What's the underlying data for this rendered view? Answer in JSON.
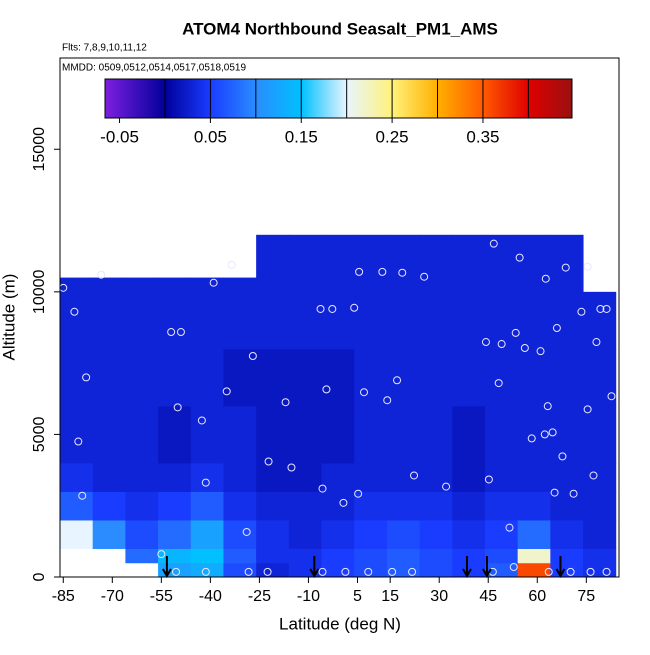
{
  "chart_data": {
    "type": "heatmap",
    "title": "ATOM4 Northbound Seasalt_PM1_AMS",
    "subtitle": "Flts: 7,8,9,10,11,12",
    "annotation": "MMDD: 0509,0512,0514,0517,0518,0519",
    "x_label": "Latitude (deg N)",
    "y_label": "Altitude (m)",
    "xlim": [
      -86,
      85
    ],
    "ylim": [
      0,
      18200
    ],
    "xticks": [
      -85,
      -70,
      -55,
      -40,
      -25,
      -10,
      5,
      15,
      30,
      45,
      60,
      75
    ],
    "yticks": [
      0,
      5000,
      10000,
      15000
    ],
    "zlim": [
      -0.066,
      0.448
    ],
    "zticks": [
      -0.05,
      0.05,
      0.15,
      0.25,
      0.35
    ],
    "colorscale": [
      [
        -0.066,
        "#7d1fe0"
      ],
      [
        0,
        "#00009a"
      ],
      [
        0.05,
        "#1a3cff"
      ],
      [
        0.1,
        "#2a8cff"
      ],
      [
        0.15,
        "#00c0ff"
      ],
      [
        0.2,
        "#e8f4ff"
      ],
      [
        0.25,
        "#fff27a"
      ],
      [
        0.3,
        "#ffb000"
      ],
      [
        0.35,
        "#ff5a00"
      ],
      [
        0.4,
        "#e00000"
      ],
      [
        0.448,
        "#9a1010"
      ]
    ],
    "x_edges": [
      -86,
      -76,
      -66,
      -56,
      -46,
      -36,
      -26,
      -16,
      -6,
      4,
      14,
      24,
      34,
      44,
      54,
      64,
      74,
      84
    ],
    "y_edges": [
      0,
      500,
      1000,
      2000,
      3000,
      4000,
      6000,
      8000,
      10000,
      10500,
      12000
    ],
    "z": [
      [
        null,
        null,
        null,
        0.12,
        0.13,
        0.06,
        0.03,
        0.04,
        0.05,
        0.06,
        0.07,
        0.06,
        0.05,
        0.07,
        0.36,
        0.05,
        0.04
      ],
      [
        null,
        null,
        0.08,
        0.14,
        0.15,
        0.07,
        0.04,
        0.04,
        0.05,
        0.06,
        0.07,
        0.06,
        0.05,
        0.06,
        0.22,
        0.05,
        0.04
      ],
      [
        0.2,
        0.1,
        0.06,
        0.08,
        0.12,
        0.06,
        0.04,
        0.03,
        0.04,
        0.05,
        0.06,
        0.05,
        0.04,
        0.05,
        0.08,
        0.04,
        0.03
      ],
      [
        0.07,
        0.05,
        0.04,
        0.05,
        0.07,
        0.04,
        0.03,
        0.03,
        0.03,
        0.04,
        0.04,
        0.04,
        0.03,
        0.04,
        0.04,
        0.03,
        0.03
      ],
      [
        0.04,
        0.03,
        0.03,
        0.03,
        0.04,
        0.03,
        0.02,
        0.02,
        0.03,
        0.03,
        0.03,
        0.03,
        0.02,
        0.03,
        0.03,
        0.03,
        0.03
      ],
      [
        0.03,
        0.03,
        0.03,
        0.02,
        0.03,
        0.03,
        0.02,
        0.02,
        0.02,
        0.03,
        0.03,
        0.03,
        0.02,
        0.03,
        0.03,
        0.03,
        0.03
      ],
      [
        0.03,
        0.03,
        0.03,
        0.03,
        0.03,
        0.02,
        0.02,
        0.02,
        0.02,
        0.03,
        0.03,
        0.03,
        0.03,
        0.03,
        0.03,
        0.03,
        0.03
      ],
      [
        0.03,
        0.03,
        0.03,
        0.03,
        0.03,
        0.03,
        0.03,
        0.03,
        0.03,
        0.03,
        0.03,
        0.03,
        0.03,
        0.03,
        0.03,
        0.03,
        0.03
      ],
      [
        0.03,
        0.03,
        0.03,
        0.03,
        0.03,
        0.03,
        0.03,
        0.03,
        0.03,
        0.03,
        0.03,
        0.03,
        0.03,
        0.03,
        0.03,
        0.03,
        null
      ],
      [
        null,
        null,
        null,
        null,
        null,
        null,
        0.03,
        0.03,
        0.03,
        0.03,
        0.03,
        0.03,
        0.03,
        0.03,
        0.03,
        0.03,
        null
      ]
    ],
    "points": {
      "x": [
        -85,
        -73.4,
        -81.6,
        -78,
        -80.4,
        -79.2,
        -52,
        -49,
        -50,
        -42.6,
        -41.4,
        -39,
        -35,
        -33.5,
        -27,
        -17,
        -22.2,
        -15.2,
        -28.9,
        -6.3,
        -2.7,
        -4.5,
        -5.7,
        0.7,
        5.2,
        4,
        5.5,
        7,
        12.6,
        14.1,
        17.1,
        18.7,
        25.4,
        22.3,
        32.1,
        45.2,
        46.7,
        44.3,
        49.1,
        48.2,
        53.4,
        54.6,
        56.2,
        62.6,
        66,
        61,
        68.7,
        63.2,
        58.3,
        62.3,
        64.7,
        67.7,
        65.3,
        71.1,
        73.5,
        75.4,
        79.3,
        78.1,
        75.4,
        77.2,
        81.2,
        82.7,
        51.5,
        -50.5,
        -41.4,
        -28.3,
        -22.5,
        -5.7,
        1.3,
        8.3,
        15.6,
        21.7,
        46.4,
        52.8,
        63.5,
        70.2,
        76.3,
        81.2,
        -55
      ],
      "y": [
        10140,
        10600,
        9300,
        7000,
        4750,
        2850,
        8590,
        8590,
        5950,
        5490,
        3310,
        10320,
        6510,
        10950,
        7750,
        6130,
        4050,
        3840,
        1580,
        9400,
        9400,
        6580,
        3100,
        2600,
        2920,
        9440,
        10700,
        6480,
        10700,
        6200,
        6900,
        10670,
        10530,
        3560,
        3170,
        3420,
        11690,
        8240,
        8170,
        6800,
        8560,
        11200,
        8030,
        10460,
        8730,
        7920,
        10850,
        5990,
        4860,
        5000,
        5070,
        4230,
        2960,
        2920,
        9300,
        10880,
        9400,
        8240,
        5880,
        3560,
        9400,
        6340,
        1730,
        180,
        180,
        180,
        180,
        180,
        180,
        180,
        180,
        180,
        180,
        350,
        180,
        180,
        180,
        180,
        800
      ]
    },
    "arrows_x": [
      -53.3,
      -8.2,
      38.5,
      44.6,
      67.1
    ]
  }
}
